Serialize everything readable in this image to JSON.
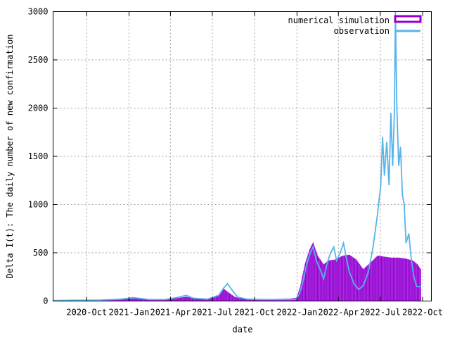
{
  "chart_data": {
    "type": "area",
    "xlabel": "date",
    "ylabel": "Delta I(t): The daily number of new confirmation",
    "ylim": [
      0,
      3000
    ],
    "xlim": [
      "2020-07-20",
      "2022-10-20"
    ],
    "yticks": [
      "0",
      "500",
      "1000",
      "1500",
      "2000",
      "2500",
      "3000"
    ],
    "xticks": [
      {
        "date": "2020-10-01",
        "label": "2020-Oct"
      },
      {
        "date": "2021-01-01",
        "label": "2021-Jan"
      },
      {
        "date": "2021-04-01",
        "label": "2021-Apr"
      },
      {
        "date": "2021-07-01",
        "label": "2021-Jul"
      },
      {
        "date": "2021-10-01",
        "label": "2021-Oct"
      },
      {
        "date": "2022-01-01",
        "label": "2022-Jan"
      },
      {
        "date": "2022-04-01",
        "label": "2022-Apr"
      },
      {
        "date": "2022-07-01",
        "label": "2022-Jul"
      },
      {
        "date": "2022-10-01",
        "label": "2022-Oct"
      }
    ],
    "grid": true,
    "legend_position": "top-right",
    "series": [
      {
        "name": "numerical simulation",
        "style": "impulses",
        "color": "#9400d3",
        "points": [
          [
            "2020-07-20",
            10
          ],
          [
            "2020-09-01",
            8
          ],
          [
            "2020-11-01",
            10
          ],
          [
            "2020-12-15",
            20
          ],
          [
            "2021-01-15",
            28
          ],
          [
            "2021-02-15",
            15
          ],
          [
            "2021-03-15",
            12
          ],
          [
            "2021-04-15",
            30
          ],
          [
            "2021-05-05",
            45
          ],
          [
            "2021-05-25",
            25
          ],
          [
            "2021-06-20",
            20
          ],
          [
            "2021-07-15",
            55
          ],
          [
            "2021-07-25",
            130
          ],
          [
            "2021-08-05",
            90
          ],
          [
            "2021-08-20",
            40
          ],
          [
            "2021-09-10",
            25
          ],
          [
            "2021-10-15",
            20
          ],
          [
            "2021-11-15",
            22
          ],
          [
            "2021-12-15",
            25
          ],
          [
            "2021-12-31",
            35
          ],
          [
            "2022-01-08",
            150
          ],
          [
            "2022-01-18",
            380
          ],
          [
            "2022-01-28",
            530
          ],
          [
            "2022-02-05",
            610
          ],
          [
            "2022-02-15",
            470
          ],
          [
            "2022-02-28",
            380
          ],
          [
            "2022-03-10",
            420
          ],
          [
            "2022-03-25",
            430
          ],
          [
            "2022-04-10",
            470
          ],
          [
            "2022-04-25",
            480
          ],
          [
            "2022-05-10",
            430
          ],
          [
            "2022-05-25",
            330
          ],
          [
            "2022-06-10",
            400
          ],
          [
            "2022-06-25",
            470
          ],
          [
            "2022-07-10",
            460
          ],
          [
            "2022-07-25",
            450
          ],
          [
            "2022-08-10",
            450
          ],
          [
            "2022-08-25",
            440
          ],
          [
            "2022-09-10",
            420
          ],
          [
            "2022-09-20",
            380
          ],
          [
            "2022-09-27",
            330
          ]
        ]
      },
      {
        "name": "observation",
        "style": "lines",
        "color": "#56b4e9",
        "points": [
          [
            "2020-07-20",
            5
          ],
          [
            "2020-09-01",
            8
          ],
          [
            "2020-11-01",
            10
          ],
          [
            "2020-12-15",
            20
          ],
          [
            "2021-01-10",
            35
          ],
          [
            "2021-01-20",
            30
          ],
          [
            "2021-02-15",
            15
          ],
          [
            "2021-03-20",
            15
          ],
          [
            "2021-04-20",
            40
          ],
          [
            "2021-05-05",
            60
          ],
          [
            "2021-05-20",
            30
          ],
          [
            "2021-06-20",
            20
          ],
          [
            "2021-07-15",
            60
          ],
          [
            "2021-07-25",
            130
          ],
          [
            "2021-08-03",
            180
          ],
          [
            "2021-08-12",
            120
          ],
          [
            "2021-08-25",
            40
          ],
          [
            "2021-09-15",
            20
          ],
          [
            "2021-10-15",
            15
          ],
          [
            "2021-11-15",
            15
          ],
          [
            "2021-12-15",
            15
          ],
          [
            "2021-12-31",
            20
          ],
          [
            "2022-01-08",
            100
          ],
          [
            "2022-01-15",
            220
          ],
          [
            "2022-01-22",
            380
          ],
          [
            "2022-01-30",
            500
          ],
          [
            "2022-02-05",
            560
          ],
          [
            "2022-02-12",
            420
          ],
          [
            "2022-02-20",
            330
          ],
          [
            "2022-02-28",
            230
          ],
          [
            "2022-03-08",
            400
          ],
          [
            "2022-03-15",
            500
          ],
          [
            "2022-03-22",
            560
          ],
          [
            "2022-03-28",
            420
          ],
          [
            "2022-04-05",
            500
          ],
          [
            "2022-04-12",
            600
          ],
          [
            "2022-04-18",
            450
          ],
          [
            "2022-04-25",
            300
          ],
          [
            "2022-05-05",
            180
          ],
          [
            "2022-05-15",
            120
          ],
          [
            "2022-05-25",
            160
          ],
          [
            "2022-06-05",
            300
          ],
          [
            "2022-06-15",
            550
          ],
          [
            "2022-06-25",
            900
          ],
          [
            "2022-07-02",
            1200
          ],
          [
            "2022-07-06",
            1700
          ],
          [
            "2022-07-10",
            1300
          ],
          [
            "2022-07-15",
            1650
          ],
          [
            "2022-07-20",
            1200
          ],
          [
            "2022-07-24",
            1950
          ],
          [
            "2022-07-28",
            1400
          ],
          [
            "2022-08-01",
            2000
          ],
          [
            "2022-08-03",
            3000
          ],
          [
            "2022-08-06",
            2000
          ],
          [
            "2022-08-10",
            1400
          ],
          [
            "2022-08-14",
            1600
          ],
          [
            "2022-08-18",
            1100
          ],
          [
            "2022-08-22",
            1000
          ],
          [
            "2022-08-26",
            600
          ],
          [
            "2022-09-01",
            700
          ],
          [
            "2022-09-06",
            450
          ],
          [
            "2022-09-12",
            250
          ],
          [
            "2022-09-18",
            150
          ],
          [
            "2022-09-27",
            150
          ]
        ]
      }
    ]
  }
}
